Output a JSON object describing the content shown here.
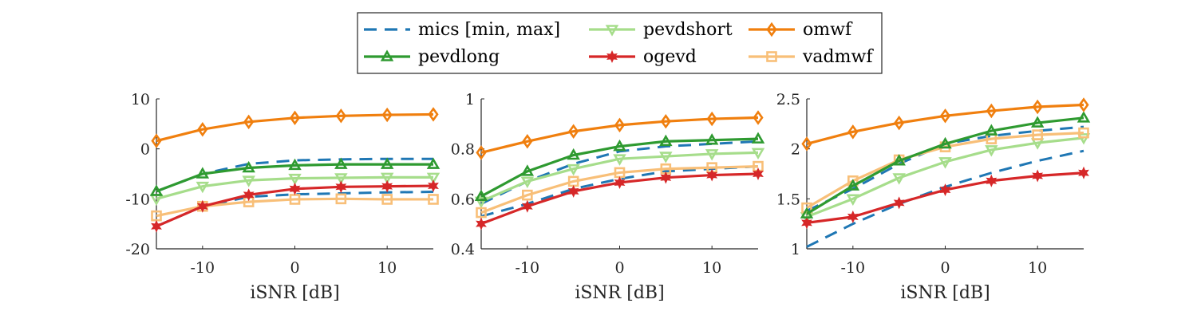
{
  "chart_data": {
    "type": "line",
    "x": [
      -15,
      -10,
      -5,
      0,
      5,
      10,
      15
    ],
    "legend": {
      "placement": "top-center",
      "entries": [
        {
          "label": "mics [min, max]",
          "color": "#1f77b4",
          "style": "dashed",
          "marker": "none"
        },
        {
          "label": "pevdshort",
          "color": "#a6dd8b",
          "style": "solid",
          "marker": "triangle-down"
        },
        {
          "label": "omwf",
          "color": "#f07f0e",
          "style": "solid",
          "marker": "diamond"
        },
        {
          "label": "pevdlong",
          "color": "#2e9a30",
          "style": "solid",
          "marker": "triangle-up"
        },
        {
          "label": "ogevd",
          "color": "#d62728",
          "style": "solid",
          "marker": "star"
        },
        {
          "label": "vadmwf",
          "color": "#f8bf78",
          "style": "solid",
          "marker": "square"
        }
      ]
    },
    "panels": [
      {
        "xlabel": "iSNR [dB]",
        "ylim": [
          -20,
          10
        ],
        "yticks": [
          -20,
          -10,
          0,
          10
        ],
        "ytick_labels": [
          "-20",
          "-10",
          "0",
          "10"
        ],
        "xticks": [
          -10,
          0,
          10
        ],
        "xtick_labels": [
          "-10",
          "0",
          "10"
        ],
        "series": [
          {
            "name": "mics [min, max]",
            "values": [
              -15.5,
              -11.5,
              -9.6,
              -9.1,
              -8.9,
              -8.7,
              -8.6
            ]
          },
          {
            "name": "mics [min, max]",
            "values": [
              -8.5,
              -5.0,
              -3.0,
              -2.3,
              -2.1,
              -2.0,
              -2.0
            ]
          },
          {
            "name": "pevdshort",
            "values": [
              -10.0,
              -7.5,
              -6.3,
              -5.9,
              -5.8,
              -5.7,
              -5.7
            ]
          },
          {
            "name": "pevdlong",
            "values": [
              -8.5,
              -5.0,
              -3.8,
              -3.3,
              -3.1,
              -3.1,
              -3.1
            ]
          },
          {
            "name": "ogevd",
            "values": [
              -15.5,
              -11.5,
              -9.2,
              -8.0,
              -7.6,
              -7.5,
              -7.4
            ]
          },
          {
            "name": "vadmwf",
            "values": [
              -13.4,
              -11.5,
              -10.6,
              -10.1,
              -10.0,
              -10.1,
              -10.1
            ]
          },
          {
            "name": "omwf",
            "values": [
              1.6,
              3.9,
              5.4,
              6.2,
              6.6,
              6.8,
              6.9
            ]
          }
        ]
      },
      {
        "xlabel": "iSNR [dB]",
        "ylim": [
          0.4,
          1
        ],
        "yticks": [
          0.4,
          0.6,
          0.8,
          1
        ],
        "ytick_labels": [
          "0.4",
          "0.6",
          "0.8",
          "1"
        ],
        "xticks": [
          -10,
          0,
          10
        ],
        "xtick_labels": [
          "-10",
          "0",
          "10"
        ],
        "series": [
          {
            "name": "mics [min, max]",
            "values": [
              0.53,
              0.58,
              0.64,
              0.68,
              0.71,
              0.72,
              0.73
            ]
          },
          {
            "name": "mics [min, max]",
            "values": [
              0.58,
              0.67,
              0.74,
              0.79,
              0.81,
              0.82,
              0.83
            ]
          },
          {
            "name": "pevdshort",
            "values": [
              0.59,
              0.67,
              0.72,
              0.76,
              0.77,
              0.78,
              0.785
            ]
          },
          {
            "name": "pevdlong",
            "values": [
              0.61,
              0.71,
              0.775,
              0.81,
              0.83,
              0.835,
              0.84
            ]
          },
          {
            "name": "ogevd",
            "values": [
              0.5,
              0.57,
              0.63,
              0.665,
              0.685,
              0.695,
              0.7
            ]
          },
          {
            "name": "vadmwf",
            "values": [
              0.545,
              0.615,
              0.67,
              0.705,
              0.72,
              0.725,
              0.73
            ]
          },
          {
            "name": "omwf",
            "values": [
              0.785,
              0.83,
              0.87,
              0.895,
              0.91,
              0.92,
              0.925
            ]
          }
        ]
      },
      {
        "xlabel": "iSNR [dB]",
        "ylim": [
          1,
          2.5
        ],
        "yticks": [
          1,
          1.5,
          2,
          2.5
        ],
        "ytick_labels": [
          "1",
          "1.5",
          "2",
          "2.5"
        ],
        "xticks": [
          -10,
          0,
          10
        ],
        "xtick_labels": [
          "-10",
          "0",
          "10"
        ],
        "series": [
          {
            "name": "mics [min, max]",
            "values": [
              1.02,
              1.25,
              1.45,
              1.62,
              1.76,
              1.88,
              1.98
            ]
          },
          {
            "name": "mics [min, max]",
            "values": [
              1.38,
              1.6,
              1.85,
              2.05,
              2.13,
              2.18,
              2.22
            ]
          },
          {
            "name": "pevdshort",
            "values": [
              1.32,
              1.5,
              1.71,
              1.87,
              1.99,
              2.06,
              2.11
            ]
          },
          {
            "name": "pevdlong",
            "values": [
              1.35,
              1.63,
              1.88,
              2.05,
              2.18,
              2.26,
              2.31
            ]
          },
          {
            "name": "ogevd",
            "values": [
              1.26,
              1.32,
              1.46,
              1.59,
              1.68,
              1.73,
              1.76
            ]
          },
          {
            "name": "vadmwf",
            "values": [
              1.41,
              1.68,
              1.89,
              2.02,
              2.1,
              2.14,
              2.16
            ]
          },
          {
            "name": "omwf",
            "values": [
              2.05,
              2.17,
              2.26,
              2.33,
              2.38,
              2.42,
              2.44
            ]
          }
        ]
      }
    ]
  }
}
